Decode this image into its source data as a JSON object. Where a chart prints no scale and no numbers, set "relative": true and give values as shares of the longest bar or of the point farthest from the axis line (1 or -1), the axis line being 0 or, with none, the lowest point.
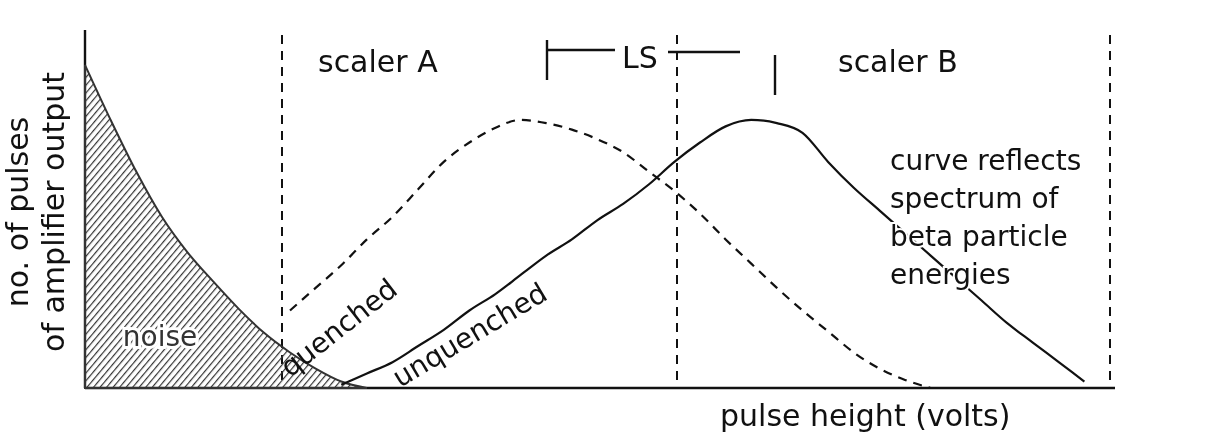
{
  "chart_data": {
    "type": "line",
    "relative": true,
    "tick_labels": false,
    "xlabel": "pulse height (volts)",
    "ylabel": "no. of pulses\nof amplifier output",
    "categories": [
      null,
      null,
      null,
      null,
      null,
      null,
      null,
      null,
      null,
      null,
      null,
      null,
      null,
      null,
      null,
      null,
      null,
      null,
      null,
      null,
      null,
      null,
      null,
      null,
      null,
      null,
      null,
      null,
      null,
      null,
      null,
      null,
      null,
      null,
      null,
      null,
      null,
      null,
      null,
      null,
      null
    ],
    "series": [
      {
        "name": "noise",
        "type": "area",
        "color": "#333333",
        "values": [
          1,
          0.83,
          0.67,
          0.53,
          0.42,
          0.33,
          0.245,
          0.17,
          0.11,
          0.06,
          0.02,
          0,
          null,
          null,
          null,
          null,
          null,
          null,
          null,
          null,
          null,
          null,
          null,
          null,
          null,
          null,
          null,
          null,
          null,
          null,
          null,
          null,
          null,
          null,
          null,
          null,
          null,
          null,
          null,
          null,
          null
        ]
      },
      {
        "name": "quenched",
        "color": "#111111",
        "line_style": "dashed",
        "values": [
          null,
          null,
          null,
          null,
          null,
          null,
          null,
          null,
          0.24,
          0.31,
          0.38,
          0.46,
          0.53,
          0.615,
          0.7,
          0.76,
          0.805,
          0.83,
          0.82,
          0.8,
          0.77,
          0.73,
          0.67,
          0.61,
          0.54,
          0.46,
          0.385,
          0.31,
          0.24,
          0.175,
          0.11,
          0.06,
          0.025,
          0,
          null,
          null,
          null,
          null,
          null,
          null,
          null
        ]
      },
      {
        "name": "unquenched",
        "color": "#111111",
        "line_style": "solid",
        "values": [
          null,
          null,
          null,
          null,
          null,
          null,
          null,
          null,
          null,
          null,
          0.01,
          0.045,
          0.08,
          0.13,
          0.18,
          0.24,
          0.29,
          0.35,
          0.41,
          0.46,
          0.52,
          0.57,
          0.63,
          0.7,
          0.76,
          0.81,
          0.83,
          0.82,
          0.79,
          0.7,
          0.62,
          0.55,
          0.48,
          0.41,
          0.34,
          0.27,
          0.2,
          0.14,
          0.08,
          0.02,
          null
        ]
      }
    ],
    "annotations": [
      "scaler A",
      "LS",
      "scaler B",
      "curve reflects\nspectrum of\nbeta particle\nenergies"
    ]
  }
}
